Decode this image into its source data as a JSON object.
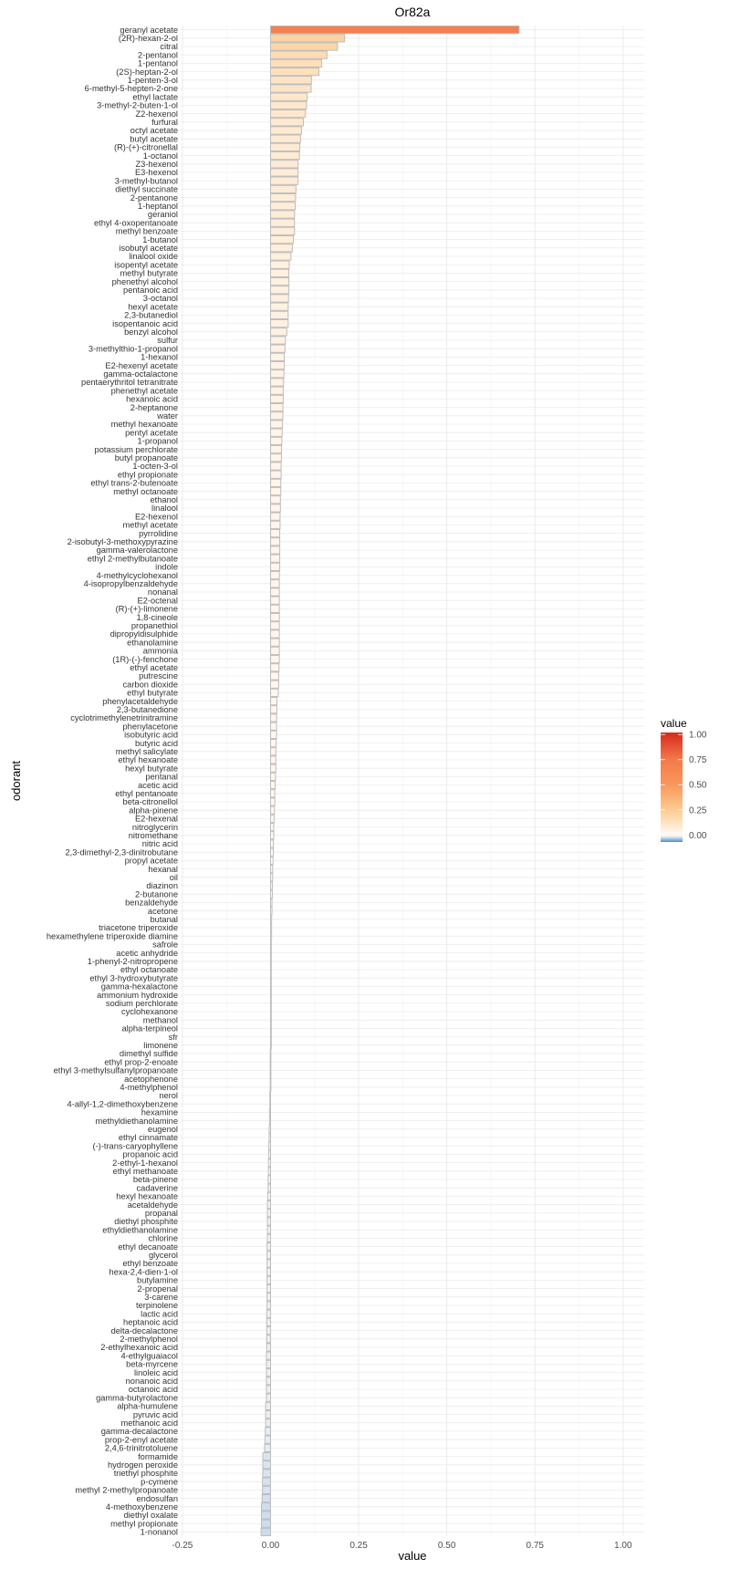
{
  "chart_data": {
    "type": "bar",
    "orientation": "horizontal",
    "title": "Or82a",
    "xlabel": "value",
    "ylabel": "odorant",
    "xlim": [
      -0.255,
      1.06
    ],
    "xticks": [
      "-0.25",
      "0.00",
      "0.25",
      "0.50",
      "0.75",
      "1.00"
    ],
    "xtick_values": [
      -0.25,
      0,
      0.25,
      0.5,
      0.75,
      1.0
    ],
    "grid": true,
    "legend": {
      "title": "value",
      "placement": "right",
      "labels": [
        "1.00",
        "0.75",
        "0.50",
        "0.25",
        "0.00"
      ],
      "label_values": [
        1.0,
        0.75,
        0.5,
        0.25,
        0.0
      ],
      "range": [
        -0.07,
        1.02
      ]
    },
    "colors": {
      "scale": [
        {
          "v": -0.07,
          "c": "#4b8dc4"
        },
        {
          "v": -0.02,
          "c": "#dfe8f1"
        },
        {
          "v": 0,
          "c": "#fffaf5"
        },
        {
          "v": 0.25,
          "c": "#fdcb8f"
        },
        {
          "v": 0.5,
          "c": "#f9975b"
        },
        {
          "v": 0.75,
          "c": "#f47a4b"
        },
        {
          "v": 1.0,
          "c": "#d7301f"
        }
      ],
      "bar_outline": "#bdbdbd",
      "grid": "#ebebeb"
    },
    "categories": [
      "geranyl acetate",
      "(2R)-hexan-2-ol",
      "citral",
      "2-pentanol",
      "1-pentanol",
      "(2S)-heptan-2-ol",
      "1-penten-3-ol",
      "6-methyl-5-hepten-2-one",
      "ethyl lactate",
      "3-methyl-2-buten-1-ol",
      "Z2-hexenol",
      "furfural",
      "octyl acetate",
      "butyl acetate",
      "(R)-(+)-citronellal",
      "1-octanol",
      "Z3-hexenol",
      "E3-hexenol",
      "3-methyl-butanol",
      "diethyl succinate",
      "2-pentanone",
      "1-heptanol",
      "geraniol",
      "ethyl 4-oxopentanoate",
      "methyl benzoate",
      "1-butanol",
      "isobutyl acetate",
      "linalool oxide",
      "isopentyl acetate",
      "methyl butyrate",
      "phenethyl alcohol",
      "pentanoic acid",
      "3-octanol",
      "hexyl acetate",
      "2,3-butanediol",
      "isopentanoic acid",
      "benzyl alcohol",
      "sulfur",
      "3-methylthio-1-propanol",
      "1-hexanol",
      "E2-hexenyl acetate",
      "gamma-octalactone",
      "pentaerythritol tetranitrate",
      "phenethyl acetate",
      "hexanoic acid",
      "2-heptanone",
      "water",
      "methyl hexanoate",
      "pentyl acetate",
      "1-propanol",
      "potassium perchlorate",
      "butyl propanoate",
      "1-octen-3-ol",
      "ethyl propionate",
      "ethyl trans-2-butenoate",
      "methyl octanoate",
      "ethanol",
      "linalool",
      "E2-hexenol",
      "methyl acetate",
      "pyrrolidine",
      "2-isobutyl-3-methoxypyrazine",
      "gamma-valerolactone",
      "ethyl 2-methylbutanoate",
      "indole",
      "4-methylcyclohexanol",
      "4-isopropylbenzaldehyde",
      "nonanal",
      "E2-octenal",
      "(R)-(+)-limonene",
      "1,8-cineole",
      "propanethiol",
      "dipropyldisulphide",
      "ethanolamine",
      "ammonia",
      "(1R)-(-)-fenchone",
      "ethyl acetate",
      "putrescine",
      "carbon dioxide",
      "ethyl butyrate",
      "phenylacetaldehyde",
      "2,3-butanedione",
      "cyclotrimethylenetrinitramine",
      "phenylacetone",
      "isobutyric acid",
      "butyric acid",
      "methyl salicylate",
      "ethyl hexanoate",
      "hexyl butyrate",
      "pentanal",
      "acetic acid",
      "ethyl pentanoate",
      "beta-citronellol",
      "alpha-pinene",
      "E2-hexenal",
      "nitroglycerin",
      "nitromethane",
      "nitric acid",
      "2,3-dimethyl-2,3-dinitrobutane",
      "propyl acetate",
      "hexanal",
      "oil",
      "diazinon",
      "2-butanone",
      "benzaldehyde",
      "acetone",
      "butanal",
      "triacetone triperoxide",
      "hexamethylene triperoxide diamine",
      "safrole",
      "acetic anhydride",
      "1-phenyl-2-nitropropene",
      "ethyl octanoate",
      "ethyl 3-hydroxybutyrate",
      "gamma-hexalactone",
      "ammonium hydroxide",
      "sodium perchlorate",
      "cyclohexanone",
      "methanol",
      "alpha-terpineol",
      "sfr",
      "limonene",
      "dimethyl sulfide",
      "ethyl prop-2-enoate",
      "ethyl 3-methylsulfanylpropanoate",
      "acetophenone",
      "4-methylphenol",
      "nerol",
      "4-allyl-1,2-dimethoxybenzene",
      "hexamine",
      "methyldiethanolamine",
      "eugenol",
      "ethyl cinnamate",
      "(-)-trans-caryophyllene",
      "propanoic acid",
      "2-ethyl-1-hexanol",
      "ethyl methanoate",
      "beta-pinene",
      "cadaverine",
      "hexyl hexanoate",
      "acetaldehyde",
      "propanal",
      "diethyl phosphite",
      "ethyldiethanolamine",
      "chlorine",
      "ethyl decanoate",
      "glycerol",
      "ethyl benzoate",
      "hexa-2,4-dien-1-ol",
      "butylamine",
      "2-propenal",
      "3-carene",
      "terpinolene",
      "lactic acid",
      "heptanoic acid",
      "delta-decalactone",
      "2-methylphenol",
      "2-ethylhexanoic acid",
      "4-ethylguaiacol",
      "beta-myrcene",
      "linoleic acid",
      "nonanoic acid",
      "octanoic acid",
      "gamma-butyrolactone",
      "alpha-humulene",
      "pyruvic acid",
      "methanoic acid",
      "gamma-decalactone",
      "prop-2-enyl acetate",
      "2,4,6-trinitrotoluene",
      "formamide",
      "hydrogen peroxide",
      "triethyl phosphite",
      "p-cymene",
      "methyl 2-methylpropanoate",
      "endosulfan",
      "4-methoxybenzene",
      "diethyl oxalate",
      "methyl propionate",
      "1-nonanol"
    ],
    "values": [
      0.705,
      0.21,
      0.19,
      0.16,
      0.145,
      0.137,
      0.116,
      0.115,
      0.104,
      0.102,
      0.099,
      0.093,
      0.088,
      0.085,
      0.083,
      0.082,
      0.078,
      0.078,
      0.078,
      0.072,
      0.071,
      0.07,
      0.068,
      0.068,
      0.068,
      0.065,
      0.062,
      0.058,
      0.053,
      0.052,
      0.052,
      0.052,
      0.051,
      0.05,
      0.05,
      0.05,
      0.046,
      0.042,
      0.041,
      0.039,
      0.039,
      0.038,
      0.037,
      0.036,
      0.036,
      0.035,
      0.035,
      0.034,
      0.033,
      0.032,
      0.031,
      0.031,
      0.03,
      0.03,
      0.029,
      0.029,
      0.028,
      0.028,
      0.027,
      0.027,
      0.026,
      0.026,
      0.026,
      0.026,
      0.026,
      0.025,
      0.025,
      0.025,
      0.025,
      0.025,
      0.025,
      0.025,
      0.025,
      0.025,
      0.025,
      0.025,
      0.024,
      0.023,
      0.023,
      0.022,
      0.018,
      0.018,
      0.017,
      0.017,
      0.017,
      0.016,
      0.015,
      0.015,
      0.015,
      0.014,
      0.013,
      0.012,
      0.012,
      0.011,
      0.01,
      0.009,
      0.009,
      0.008,
      0.008,
      0.007,
      0.006,
      0.006,
      0.005,
      0.005,
      0.004,
      0.004,
      0.003,
      0.003,
      0.003,
      0.002,
      0.002,
      0.002,
      0.001,
      0.001,
      0.001,
      0.001,
      0.0,
      0.0,
      0.0,
      0.0,
      0.0,
      0.0,
      -0.001,
      -0.001,
      -0.001,
      -0.001,
      -0.001,
      -0.002,
      -0.002,
      -0.003,
      -0.003,
      -0.004,
      -0.004,
      -0.005,
      -0.005,
      -0.006,
      -0.006,
      -0.007,
      -0.007,
      -0.008,
      -0.009,
      -0.009,
      -0.009,
      -0.009,
      -0.009,
      -0.01,
      -0.01,
      -0.01,
      -0.01,
      -0.01,
      -0.01,
      -0.01,
      -0.01,
      -0.011,
      -0.011,
      -0.011,
      -0.011,
      -0.011,
      -0.012,
      -0.012,
      -0.012,
      -0.012,
      -0.012,
      -0.012,
      -0.014,
      -0.014,
      -0.014,
      -0.015,
      -0.016,
      -0.017,
      -0.022,
      -0.022,
      -0.022,
      -0.023,
      -0.023,
      -0.024,
      -0.026,
      -0.026,
      -0.026,
      -0.027
    ]
  }
}
